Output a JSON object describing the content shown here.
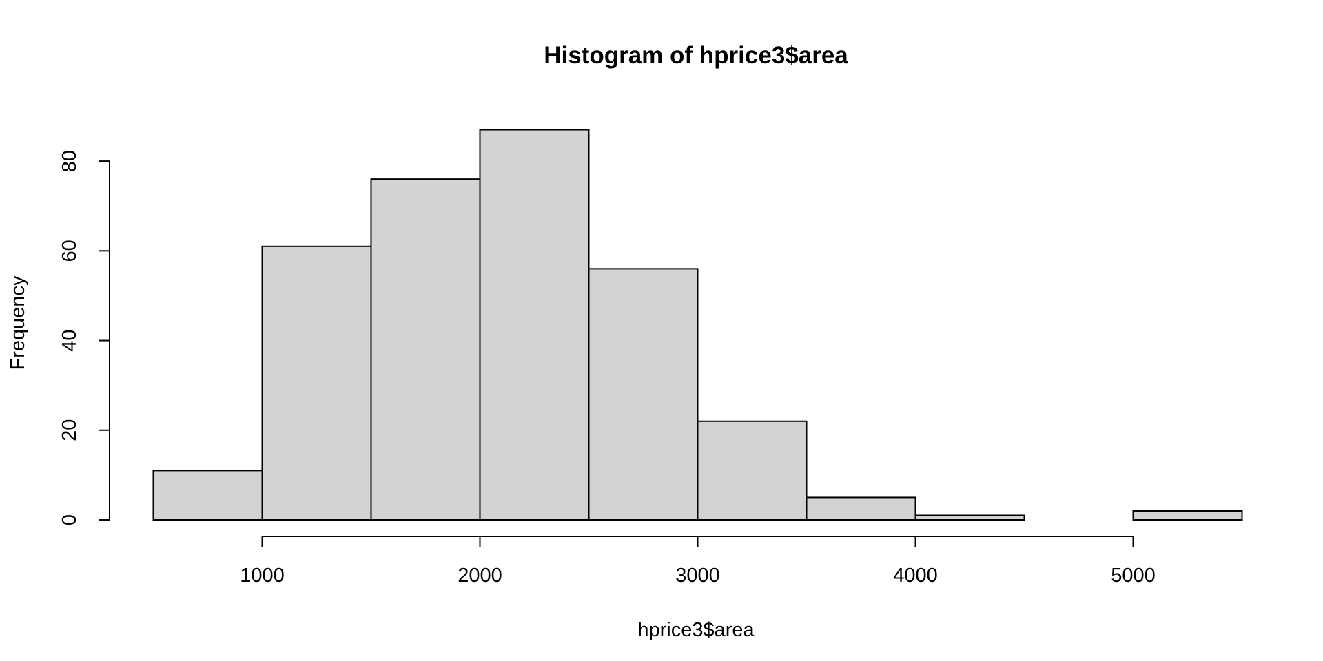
{
  "chart_data": {
    "type": "bar",
    "title": "Histogram of hprice3$area",
    "xlabel": "hprice3$area",
    "ylabel": "Frequency",
    "bins": [
      {
        "start": 500,
        "end": 1000,
        "value": 11
      },
      {
        "start": 1000,
        "end": 1500,
        "value": 61
      },
      {
        "start": 1500,
        "end": 2000,
        "value": 76
      },
      {
        "start": 2000,
        "end": 2500,
        "value": 87
      },
      {
        "start": 2500,
        "end": 3000,
        "value": 56
      },
      {
        "start": 3000,
        "end": 3500,
        "value": 22
      },
      {
        "start": 3500,
        "end": 4000,
        "value": 5
      },
      {
        "start": 4000,
        "end": 4500,
        "value": 1
      },
      {
        "start": 4500,
        "end": 5000,
        "value": 0
      },
      {
        "start": 5000,
        "end": 5500,
        "value": 2
      }
    ],
    "xlim": [
      500,
      5500
    ],
    "ylim": [
      0,
      90
    ],
    "x_ticks": [
      1000,
      2000,
      3000,
      4000,
      5000
    ],
    "x_tick_labels": [
      "1000",
      "2000",
      "3000",
      "4000",
      "5000"
    ],
    "y_ticks": [
      0,
      20,
      40,
      60,
      80
    ],
    "y_tick_labels": [
      "0",
      "20",
      "40",
      "60",
      "80"
    ],
    "bar_color": "#d3d3d3",
    "border_color": "#000000",
    "grid": false,
    "legend": "none"
  }
}
